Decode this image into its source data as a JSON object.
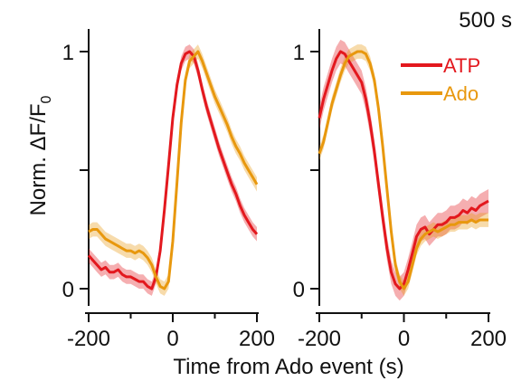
{
  "chart_data": {
    "type": "line",
    "panel_label": "500 s",
    "ylabel_main": "Norm. ΔF/F",
    "ylabel_sub": "0",
    "xlabel": "Time from Ado event (s)",
    "xlim": [
      -200,
      200
    ],
    "ylim": [
      0,
      1
    ],
    "xticks": [
      -200,
      0,
      200
    ],
    "xtick_labels": [
      "-200",
      "0",
      "200"
    ],
    "yticks": [
      0,
      0.5,
      1
    ],
    "ytick_labels": [
      "0",
      "",
      "1"
    ],
    "colors": {
      "ATP": "#e3181e",
      "Ado": "#e8980e"
    },
    "legend": [
      {
        "label": "ATP",
        "color": "#e3181e"
      },
      {
        "label": "Ado",
        "color": "#e8980e"
      }
    ],
    "legend_position": "top-right",
    "panels": [
      {
        "series": [
          {
            "name": "ATP",
            "x": [
              -200,
              -190,
              -180,
              -170,
              -160,
              -150,
              -140,
              -130,
              -120,
              -110,
              -100,
              -90,
              -80,
              -70,
              -60,
              -50,
              -40,
              -30,
              -20,
              -10,
              0,
              10,
              20,
              30,
              40,
              50,
              60,
              70,
              80,
              90,
              100,
              110,
              120,
              130,
              140,
              150,
              160,
              170,
              180,
              190,
              200
            ],
            "y": [
              0.14,
              0.12,
              0.1,
              0.08,
              0.09,
              0.07,
              0.07,
              0.08,
              0.06,
              0.05,
              0.05,
              0.04,
              0.03,
              0.03,
              0.01,
              0.0,
              0.05,
              0.16,
              0.33,
              0.52,
              0.72,
              0.86,
              0.95,
              0.99,
              1.0,
              0.98,
              0.92,
              0.84,
              0.77,
              0.71,
              0.65,
              0.59,
              0.54,
              0.49,
              0.44,
              0.4,
              0.35,
              0.31,
              0.28,
              0.25,
              0.23
            ],
            "err": 0.03
          },
          {
            "name": "Ado",
            "x": [
              -200,
              -190,
              -180,
              -170,
              -160,
              -150,
              -140,
              -130,
              -120,
              -110,
              -100,
              -90,
              -80,
              -70,
              -60,
              -50,
              -40,
              -30,
              -20,
              -10,
              0,
              10,
              20,
              30,
              40,
              50,
              60,
              70,
              80,
              90,
              100,
              110,
              120,
              130,
              140,
              150,
              160,
              170,
              180,
              190,
              200
            ],
            "y": [
              0.24,
              0.25,
              0.25,
              0.23,
              0.21,
              0.2,
              0.19,
              0.18,
              0.17,
              0.16,
              0.16,
              0.15,
              0.16,
              0.15,
              0.13,
              0.1,
              0.05,
              0.01,
              0.0,
              0.03,
              0.2,
              0.45,
              0.7,
              0.88,
              0.96,
              0.98,
              1.0,
              0.96,
              0.91,
              0.86,
              0.81,
              0.77,
              0.73,
              0.69,
              0.64,
              0.6,
              0.57,
              0.53,
              0.5,
              0.47,
              0.44
            ],
            "err": 0.03
          }
        ]
      },
      {
        "series": [
          {
            "name": "ATP",
            "x": [
              -200,
              -190,
              -180,
              -170,
              -160,
              -150,
              -140,
              -130,
              -120,
              -110,
              -100,
              -90,
              -80,
              -70,
              -60,
              -50,
              -40,
              -30,
              -20,
              -10,
              0,
              10,
              20,
              30,
              40,
              50,
              60,
              70,
              80,
              90,
              100,
              110,
              120,
              130,
              140,
              150,
              160,
              170,
              180,
              190,
              200
            ],
            "y": [
              0.72,
              0.8,
              0.86,
              0.92,
              0.97,
              1.0,
              0.99,
              0.96,
              0.93,
              0.9,
              0.87,
              0.8,
              0.7,
              0.58,
              0.44,
              0.3,
              0.17,
              0.07,
              0.02,
              0.0,
              0.02,
              0.08,
              0.15,
              0.22,
              0.25,
              0.26,
              0.23,
              0.25,
              0.27,
              0.27,
              0.28,
              0.3,
              0.3,
              0.31,
              0.33,
              0.32,
              0.34,
              0.33,
              0.35,
              0.36,
              0.37
            ],
            "err": 0.05
          },
          {
            "name": "Ado",
            "x": [
              -200,
              -190,
              -180,
              -170,
              -160,
              -150,
              -140,
              -130,
              -120,
              -110,
              -100,
              -90,
              -80,
              -70,
              -60,
              -50,
              -40,
              -30,
              -20,
              -10,
              0,
              10,
              20,
              30,
              40,
              50,
              60,
              70,
              80,
              90,
              100,
              110,
              120,
              130,
              140,
              150,
              160,
              170,
              180,
              190,
              200
            ],
            "y": [
              0.57,
              0.62,
              0.7,
              0.78,
              0.84,
              0.9,
              0.95,
              0.98,
              0.99,
              1.0,
              1.0,
              0.99,
              0.95,
              0.88,
              0.76,
              0.6,
              0.42,
              0.24,
              0.1,
              0.03,
              0.0,
              0.03,
              0.1,
              0.17,
              0.21,
              0.23,
              0.24,
              0.25,
              0.24,
              0.25,
              0.26,
              0.27,
              0.27,
              0.28,
              0.28,
              0.28,
              0.29,
              0.28,
              0.29,
              0.29,
              0.29
            ],
            "err": 0.03
          }
        ]
      }
    ]
  }
}
